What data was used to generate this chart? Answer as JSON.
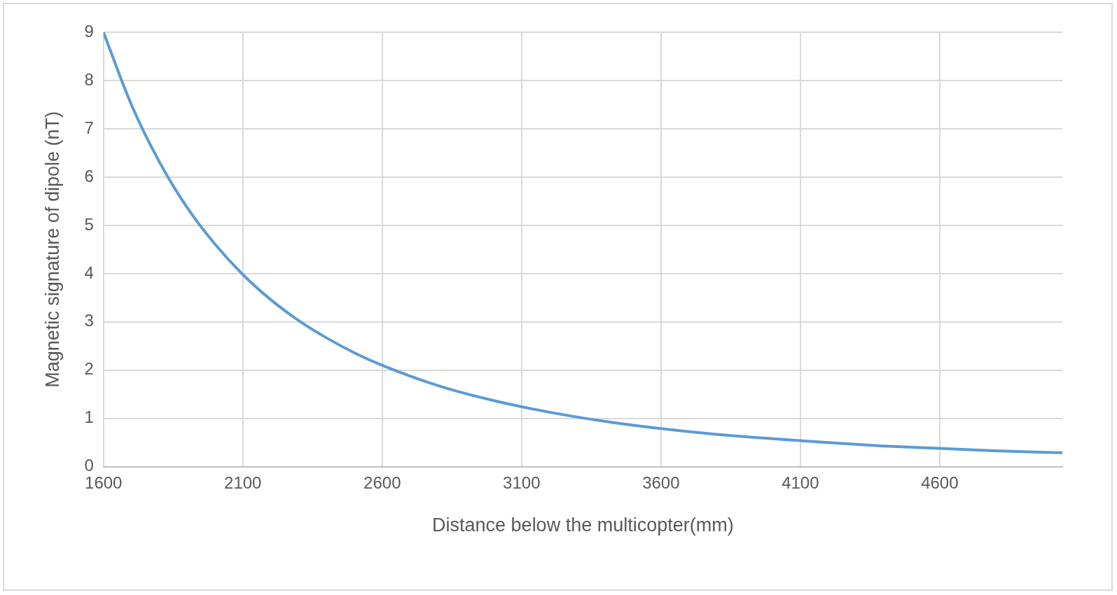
{
  "chart_data": {
    "type": "line",
    "xlabel": "Distance below the multicopter(mm)",
    "ylabel": "Magnetic signature of dipole (nT)",
    "x": [
      1600,
      1700,
      1800,
      1900,
      2000,
      2100,
      2200,
      2300,
      2400,
      2500,
      2600,
      2800,
      3000,
      3200,
      3400,
      3600,
      3800,
      4000,
      4200,
      4400,
      4600,
      4800,
      5040
    ],
    "series": [
      {
        "color": "#5b9bd5",
        "values": [
          9.0,
          7.5,
          6.32,
          5.37,
          4.61,
          3.98,
          3.46,
          3.03,
          2.67,
          2.36,
          2.1,
          1.68,
          1.37,
          1.13,
          0.94,
          0.79,
          0.67,
          0.58,
          0.5,
          0.43,
          0.38,
          0.33,
          0.29
        ]
      }
    ],
    "xlim": [
      1600,
      5040
    ],
    "xticks": [
      1600,
      2100,
      2600,
      3100,
      3600,
      4100,
      4600
    ],
    "ylim": [
      0,
      9
    ],
    "yticks": [
      0,
      1,
      2,
      3,
      4,
      5,
      6,
      7,
      8,
      9
    ],
    "grid": true,
    "legend": false,
    "marker": "none",
    "line_style": "solid"
  }
}
